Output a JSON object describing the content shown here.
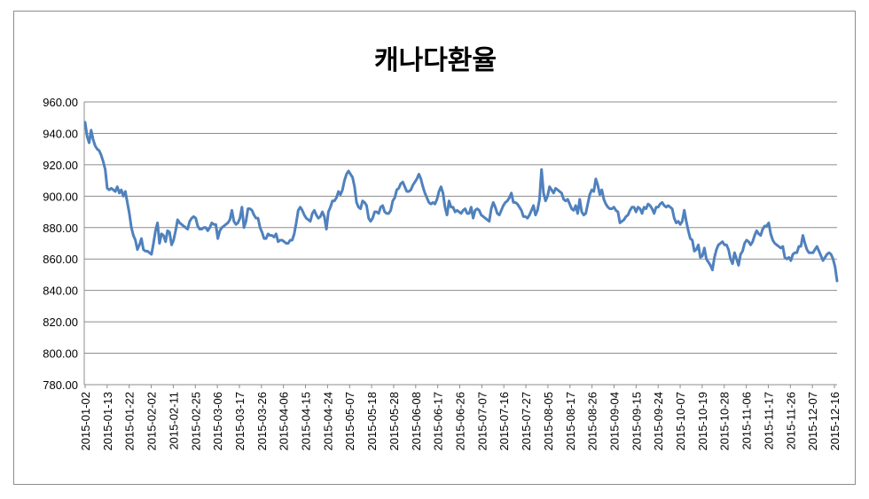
{
  "chart_data": {
    "type": "line",
    "title": "캐나다환율",
    "xlabel": "",
    "ylabel": "",
    "ylim": [
      780,
      960
    ],
    "yticks": [
      "780.00",
      "800.00",
      "820.00",
      "840.00",
      "860.00",
      "880.00",
      "900.00",
      "920.00",
      "940.00",
      "960.00"
    ],
    "xticks": [
      "2015-01-02",
      "2015-01-13",
      "2015-01-22",
      "2015-02-02",
      "2015-02-11",
      "2015-02-25",
      "2015-03-06",
      "2015-03-17",
      "2015-03-26",
      "2015-04-06",
      "2015-04-15",
      "2015-04-24",
      "2015-05-07",
      "2015-05-18",
      "2015-05-28",
      "2015-06-08",
      "2015-06-17",
      "2015-06-26",
      "2015-07-07",
      "2015-07-16",
      "2015-07-27",
      "2015-08-05",
      "2015-08-17",
      "2015-08-26",
      "2015-09-04",
      "2015-09-15",
      "2015-09-24",
      "2015-10-07",
      "2015-10-19",
      "2015-10-28",
      "2015-11-06",
      "2015-11-17",
      "2015-11-26",
      "2015-12-07",
      "2015-12-16"
    ],
    "grid": true,
    "legend": "none",
    "color": "#4f81bd",
    "series": [
      {
        "values": [
          947,
          938,
          934,
          942,
          936,
          932,
          930,
          929,
          926,
          922,
          917,
          905,
          904,
          905,
          904,
          903,
          906,
          902,
          904,
          900,
          903,
          896,
          889,
          880,
          875,
          872,
          866,
          869,
          873,
          866,
          865,
          865,
          864,
          863,
          870,
          878,
          883,
          870,
          876,
          875,
          871,
          878,
          877,
          869,
          872,
          878,
          885,
          883,
          882,
          881,
          880,
          879,
          884,
          886,
          887,
          886,
          881,
          879,
          879,
          880,
          880,
          878,
          880,
          883,
          882,
          882,
          873,
          878,
          880,
          881,
          882,
          883,
          885,
          891,
          884,
          882,
          883,
          886,
          893,
          880,
          884,
          892,
          892,
          891,
          888,
          886,
          886,
          880,
          877,
          873,
          873,
          876,
          875,
          875,
          874,
          876,
          871,
          872,
          872,
          871,
          870,
          870,
          872,
          872,
          876,
          883,
          891,
          893,
          891,
          888,
          886,
          885,
          884,
          889,
          891,
          888,
          886,
          887,
          890,
          887,
          879,
          890,
          893,
          897,
          897,
          899,
          903,
          901,
          904,
          910,
          914,
          916,
          914,
          912,
          906,
          896,
          893,
          892,
          897,
          896,
          894,
          886,
          884,
          886,
          890,
          890,
          889,
          893,
          894,
          890,
          889,
          889,
          891,
          897,
          899,
          904,
          905,
          908,
          909,
          906,
          903,
          903,
          904,
          907,
          909,
          911,
          914,
          911,
          906,
          902,
          899,
          896,
          895,
          896,
          895,
          898,
          903,
          906,
          902,
          893,
          888,
          897,
          893,
          893,
          890,
          891,
          890,
          889,
          891,
          892,
          889,
          889,
          893,
          886,
          891,
          892,
          891,
          888,
          887,
          886,
          885,
          884,
          892,
          896,
          893,
          889,
          888,
          891,
          894,
          896,
          897,
          899,
          902,
          896,
          896,
          895,
          893,
          891,
          887,
          887,
          886,
          888,
          891,
          894,
          888,
          891,
          898,
          917,
          902,
          897,
          900,
          906,
          904,
          902,
          905,
          904,
          903,
          902,
          898,
          897,
          898,
          895,
          892,
          891,
          894,
          889,
          898,
          890,
          888,
          889,
          895,
          901,
          904,
          903,
          911,
          907,
          901,
          904,
          898,
          895,
          893,
          892,
          892,
          893,
          891,
          890,
          883,
          884,
          885,
          887,
          888,
          891,
          893,
          893,
          890,
          893,
          892,
          889,
          893,
          892,
          895,
          894,
          892,
          889,
          893,
          893,
          895,
          896,
          894,
          893,
          894,
          893,
          892,
          886,
          883,
          884,
          882,
          884,
          891,
          884,
          878,
          873,
          872,
          865,
          866,
          869,
          861,
          862,
          867,
          860,
          858,
          856,
          853,
          861,
          866,
          869,
          870,
          871,
          869,
          869,
          866,
          860,
          857,
          864,
          860,
          856,
          863,
          865,
          870,
          872,
          871,
          869,
          871,
          875,
          878,
          876,
          875,
          879,
          881,
          881,
          883,
          876,
          872,
          870,
          869,
          868,
          867,
          868,
          861,
          860,
          861,
          859,
          863,
          864,
          864,
          868,
          868,
          875,
          870,
          866,
          864,
          864,
          864,
          866,
          868,
          865,
          862,
          859,
          861,
          863,
          864,
          863,
          860,
          855,
          846
        ]
      }
    ]
  }
}
